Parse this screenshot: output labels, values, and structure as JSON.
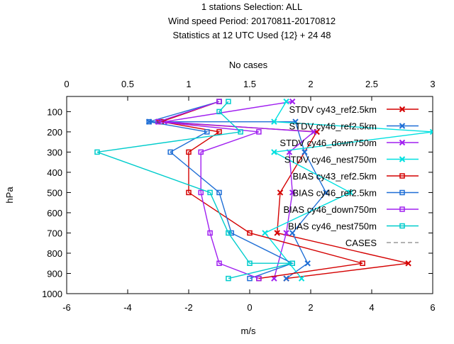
{
  "chart_data": {
    "type": "line",
    "title_lines": [
      "1 stations Selection: ALL",
      "Wind speed  Period: 20170811-20170812",
      "Statistics at 12 UTC  Used {12} + 24 48"
    ],
    "top_axis_label": "No cases",
    "xlabel": "m/s",
    "ylabel": "hPa",
    "xlim": [
      -6,
      6
    ],
    "ylim": [
      1000,
      25
    ],
    "top_xlim": [
      0,
      3
    ],
    "x_ticks": [
      -6,
      -4,
      -2,
      0,
      2,
      4,
      6
    ],
    "y_ticks": [
      100,
      200,
      300,
      400,
      500,
      600,
      700,
      800,
      900,
      1000
    ],
    "top_ticks": [
      "0",
      "0.5",
      "1",
      "1.5",
      "2",
      "2.5",
      "3"
    ],
    "legend_position": "top-right",
    "grid": false,
    "series": [
      {
        "name": "STDV cy43_ref2.5km",
        "color": "#d40000",
        "marker": "x",
        "points": [
          [
            -3.0,
            150
          ],
          [
            2.2,
            200
          ],
          [
            2.2,
            200
          ],
          [
            1.0,
            500
          ],
          [
            0.9,
            700
          ],
          [
            5.2,
            850
          ],
          [
            1.2,
            925
          ]
        ]
      },
      {
        "name": "STDV cy46_ref2.5km",
        "color": "#1f6fd6",
        "marker": "x",
        "points": [
          [
            -3.3,
            150
          ],
          [
            1.5,
            150
          ],
          [
            1.8,
            300
          ],
          [
            2.5,
            500
          ],
          [
            1.4,
            700
          ],
          [
            1.9,
            850
          ],
          [
            1.2,
            925
          ]
        ]
      },
      {
        "name": "STDV cy46_down750m",
        "color": "#a020f0",
        "marker": "x",
        "points": [
          [
            1.4,
            50
          ],
          [
            -2.8,
            150
          ],
          [
            2.1,
            200
          ],
          [
            1.3,
            300
          ],
          [
            1.4,
            500
          ],
          [
            1.2,
            700
          ],
          [
            0.8,
            925
          ]
        ]
      },
      {
        "name": "STDV cy46_nest750m",
        "color": "#00e0e0",
        "marker": "x",
        "points": [
          [
            1.2,
            50
          ],
          [
            0.8,
            150
          ],
          [
            6.0,
            200
          ],
          [
            0.8,
            300
          ],
          [
            3.3,
            500
          ],
          [
            0.5,
            700
          ],
          [
            1.7,
            925
          ]
        ]
      },
      {
        "name": "BIAS cy43_ref2.5km",
        "color": "#d40000",
        "marker": "square",
        "points": [
          [
            -1.0,
            50
          ],
          [
            -2.9,
            150
          ],
          [
            -1.0,
            200
          ],
          [
            -2.0,
            300
          ],
          [
            -2.0,
            500
          ],
          [
            0.0,
            700
          ],
          [
            3.7,
            850
          ],
          [
            0.3,
            925
          ]
        ]
      },
      {
        "name": "BIAS cy46_ref2.5km",
        "color": "#1f6fd6",
        "marker": "square",
        "points": [
          [
            -1.0,
            50
          ],
          [
            -3.3,
            150
          ],
          [
            -1.4,
            200
          ],
          [
            -2.6,
            300
          ],
          [
            -1.0,
            500
          ],
          [
            -0.6,
            700
          ],
          [
            1.4,
            850
          ],
          [
            0.0,
            925
          ]
        ]
      },
      {
        "name": "BIAS cy46_down750m",
        "color": "#a020f0",
        "marker": "square",
        "points": [
          [
            -1.0,
            50
          ],
          [
            -3.0,
            150
          ],
          [
            0.3,
            200
          ],
          [
            -1.6,
            300
          ],
          [
            -1.6,
            500
          ],
          [
            -1.3,
            700
          ],
          [
            -1.0,
            850
          ],
          [
            0.3,
            925
          ]
        ]
      },
      {
        "name": "BIAS cy46_nest750m",
        "color": "#00cccc",
        "marker": "square",
        "points": [
          [
            -0.7,
            50
          ],
          [
            -1.0,
            100
          ],
          [
            -0.3,
            200
          ],
          [
            -5.0,
            300
          ],
          [
            -1.3,
            500
          ],
          [
            -0.7,
            700
          ],
          [
            0.0,
            850
          ],
          [
            1.4,
            850
          ],
          [
            -0.7,
            925
          ]
        ]
      }
    ],
    "legend_extra": {
      "name": "CASES",
      "color": "#9a9a9a",
      "style": "dashed"
    }
  }
}
